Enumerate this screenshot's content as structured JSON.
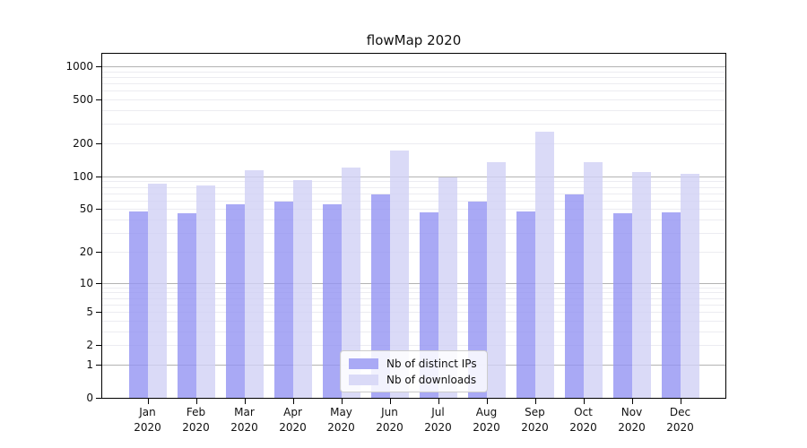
{
  "title": "flowMap 2020",
  "colors": {
    "bar_distinct_ips": "rgba(148,148,243,0.8)",
    "bar_downloads": "rgba(209,209,245,0.8)",
    "swatch_distinct_ips": "#a9a9f5",
    "swatch_downloads": "#dadaf7",
    "grid_minor": "#ececf1",
    "grid_major": "#b3b3b3",
    "axis": "#000000"
  },
  "legend": {
    "items": [
      {
        "label": "Nb of distinct IPs",
        "series": "distinct_ips"
      },
      {
        "label": "Nb of downloads",
        "series": "downloads"
      }
    ],
    "position": "lower center"
  },
  "chart_data": {
    "type": "bar",
    "title": "flowMap 2020",
    "categories": [
      "Jan 2020",
      "Feb 2020",
      "Mar 2020",
      "Apr 2020",
      "May 2020",
      "Jun 2020",
      "Jul 2020",
      "Aug 2020",
      "Sep 2020",
      "Oct 2020",
      "Nov 2020",
      "Dec 2020"
    ],
    "series": [
      {
        "name": "Nb of distinct IPs",
        "values": [
          48,
          46,
          55,
          59,
          56,
          68,
          47,
          59,
          48,
          68,
          46,
          47
        ]
      },
      {
        "name": "Nb of downloads",
        "values": [
          85,
          82,
          113,
          93,
          120,
          172,
          97,
          135,
          257,
          135,
          110,
          105
        ]
      }
    ],
    "xlabel": "",
    "ylabel": "",
    "yscale": "symlog-log1p",
    "yticks": [
      0,
      1,
      2,
      5,
      10,
      20,
      50,
      100,
      200,
      500,
      1000
    ],
    "major_gridlines": [
      1,
      10,
      100,
      1000
    ],
    "minor_gridlines": [
      2,
      3,
      4,
      5,
      6,
      7,
      8,
      9,
      20,
      30,
      40,
      50,
      60,
      70,
      80,
      90,
      200,
      300,
      400,
      500,
      600,
      700,
      800,
      900
    ],
    "ylim": [
      0,
      1300
    ],
    "grid": true,
    "legend_position": "lower center"
  }
}
